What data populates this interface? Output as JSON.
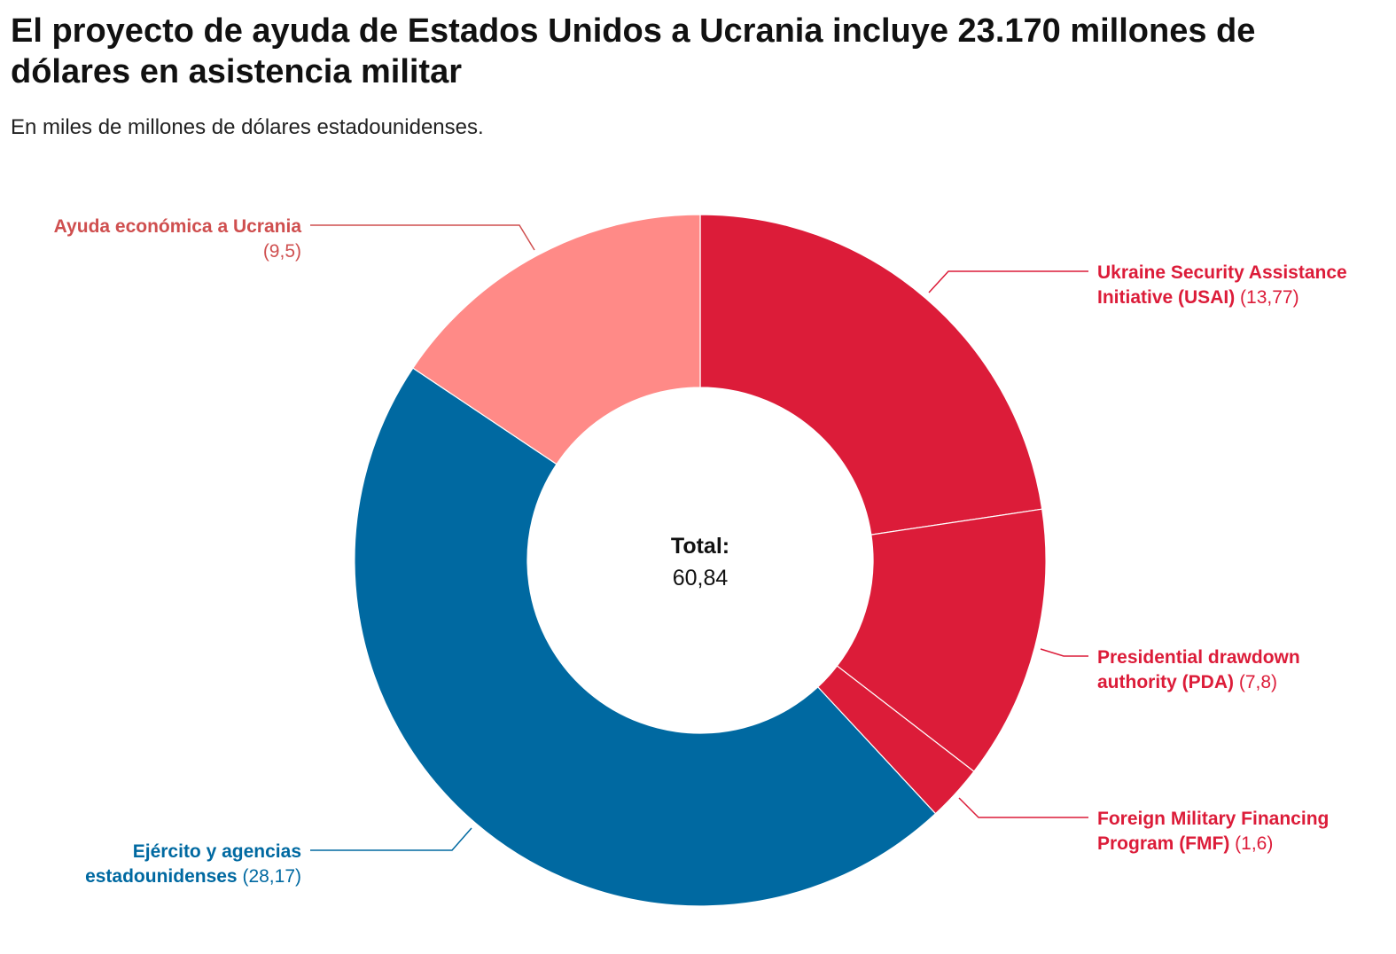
{
  "header": {
    "title": "El proyecto de ayuda de Estados Unidos a Ucrania incluye 23.170 millones de dólares en asistencia militar",
    "subtitle": "En miles de millones de dólares estadounidenses."
  },
  "chart_data": {
    "type": "pie",
    "donut": true,
    "start": "top",
    "direction": "clockwise",
    "center_label": {
      "title": "Total:",
      "value": "60,84"
    },
    "slices": [
      {
        "name_lines": [
          "Ukraine Security Assistance",
          "Initiative (USAI)"
        ],
        "value": 13.77,
        "value_label": "(13,77)",
        "color": "#DC1C39"
      },
      {
        "name_lines": [
          "Presidential drawdown",
          "authority (PDA)"
        ],
        "value": 7.8,
        "value_label": "(7,8)",
        "color": "#DC1C39"
      },
      {
        "name_lines": [
          "Foreign Military Financing",
          "Program (FMF)"
        ],
        "value": 1.6,
        "value_label": "(1,6)",
        "color": "#DC1C39"
      },
      {
        "name_lines": [
          "Ejército y agencias",
          "estadounidenses"
        ],
        "value": 28.17,
        "value_label": "(28,17)",
        "color": "#0069A1"
      },
      {
        "name_lines": [
          "Ayuda económica a Ucrania"
        ],
        "value": 9.5,
        "value_label": "(9,5)",
        "color": "#FF8A87",
        "label_color": "#CF4F4F"
      }
    ]
  }
}
